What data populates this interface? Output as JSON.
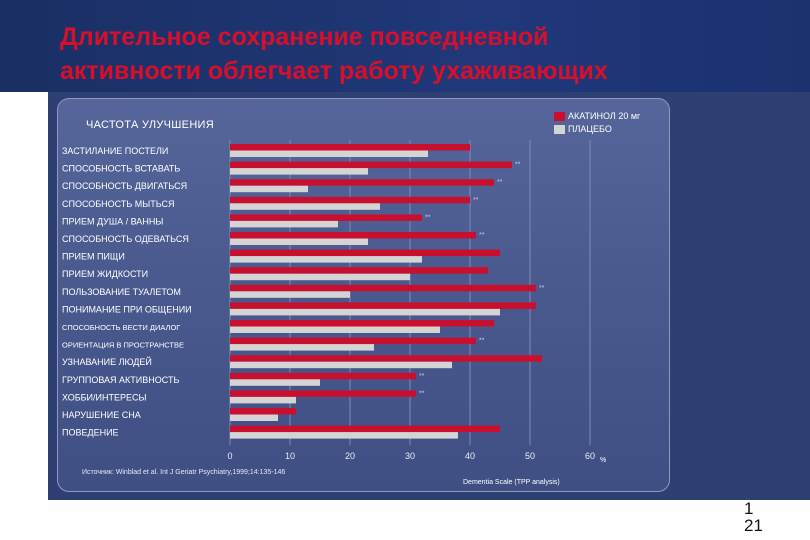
{
  "slide": {
    "title_line1": "Длительное сохранение повседневной",
    "title_line2": "активности облегчает работу ухаживающих",
    "page_line1": "1",
    "page_line2": "21",
    "source": "Источник: Winblad et al. Int J Geriatr Psychiatry,1999;14:135-146",
    "percent_label": "%"
  },
  "colors": {
    "akatinol": "#c8102e",
    "placebo": "#d4d4d4",
    "panel": "#4a5a8f",
    "title": "#d80f2a"
  },
  "chart_data": {
    "type": "bar",
    "orientation": "horizontal",
    "title": "ЧАСТОТА УЛУЧШЕНИЯ",
    "xlabel": "Dementia Scale (TPP analysis)",
    "xlim": [
      0,
      60
    ],
    "xticks": [
      "0",
      "10",
      "20",
      "30",
      "40",
      "50",
      "60"
    ],
    "grid": true,
    "legend_position": "top-right",
    "significance_marker": "**",
    "categories": [
      "ЗАСТИЛАНИЕ ПОСТЕЛИ",
      "СПОСОБНОСТЬ ВСТАВАТЬ",
      "СПОСОБНОСТЬ ДВИГАТЬСЯ",
      "СПОСОБНОСТЬ МЫТЬСЯ",
      "ПРИЕМ ДУША / ВАННЫ",
      "СПОСОБНОСТЬ ОДЕВАТЬСЯ",
      "ПРИЕМ ПИЩИ",
      "ПРИЕМ ЖИДКОСТИ",
      "ПОЛЬЗОВАНИЕ ТУАЛЕТОМ",
      "ПОНИМАНИЕ ПРИ ОБЩЕНИИ",
      "СПОСОБНОСТЬ ВЕСТИ ДИАЛОГ",
      "ОРИЕНТАЦИЯ В ПРОСТРАНСТВЕ",
      "УЗНАВАНИЕ ЛЮДЕЙ",
      "ГРУППОВАЯ АКТИВНОСТЬ",
      "ХОББИ/ИНТЕРЕСЫ",
      "НАРУШЕНИЕ СНА",
      "ПОВЕДЕНИЕ"
    ],
    "series": [
      {
        "name": "АКАТИНОЛ 20 мг",
        "values": [
          40,
          47,
          44,
          40,
          32,
          41,
          45,
          43,
          51,
          51,
          44,
          41,
          52,
          31,
          31,
          11,
          45
        ],
        "significant": [
          false,
          true,
          true,
          true,
          true,
          true,
          false,
          false,
          true,
          false,
          false,
          true,
          false,
          true,
          true,
          false,
          false
        ]
      },
      {
        "name": "ПЛАЦЕБО",
        "values": [
          33,
          23,
          13,
          25,
          18,
          23,
          32,
          30,
          20,
          45,
          35,
          24,
          37,
          15,
          11,
          8,
          38
        ]
      }
    ]
  }
}
